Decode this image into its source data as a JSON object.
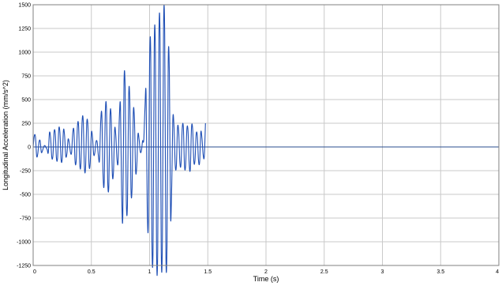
{
  "chart_data": {
    "type": "line",
    "title": "",
    "xlabel": "Time (s)",
    "ylabel": "Longitudinal Acceleration (mm/s^2)",
    "xlim": [
      0,
      4
    ],
    "ylim": [
      -1250,
      1500
    ],
    "x_ticks": [
      0,
      0.5,
      1,
      1.5,
      2,
      2.5,
      3,
      3.5,
      4
    ],
    "x_tick_labels": [
      "0",
      "0.5",
      "1",
      "1.5",
      "2",
      "2.5",
      "3",
      "3.5",
      "4"
    ],
    "y_ticks": [
      -1250,
      -1000,
      -750,
      -500,
      -250,
      0,
      250,
      500,
      750,
      1000,
      1250,
      1500
    ],
    "y_tick_labels": [
      "-1250",
      "-1000",
      "-750",
      "-500",
      "-250",
      "0",
      "250",
      "500",
      "750",
      "1000",
      "1250",
      "1500"
    ],
    "grid": true,
    "legend": "none",
    "series": [
      {
        "color": "#1f4fb5",
        "sample_interval_s": 0.01,
        "values": [
          0,
          118,
          105,
          -95,
          -70,
          50,
          65,
          -55,
          -40,
          0,
          15,
          -5,
          -25,
          -60,
          150,
          95,
          -110,
          -90,
          160,
          140,
          -120,
          -115,
          190,
          150,
          -135,
          -120,
          175,
          120,
          -95,
          -70,
          80,
          45,
          -55,
          -60,
          145,
          175,
          -150,
          -145,
          210,
          230,
          -175,
          -185,
          260,
          280,
          -210,
          -220,
          245,
          230,
          -190,
          -170,
          150,
          100,
          -80,
          -60,
          55,
          50,
          -90,
          -140,
          260,
          340,
          -280,
          -380,
          370,
          400,
          -350,
          -410,
          320,
          320,
          -280,
          -260,
          185,
          120,
          -130,
          -155,
          300,
          430,
          -475,
          -740,
          655,
          630,
          -560,
          -600,
          520,
          500,
          -440,
          -420,
          360,
          290,
          -250,
          -200,
          130,
          80,
          -50,
          -40,
          65,
          70,
          400,
          560,
          -640,
          -780,
          880,
          980,
          -980,
          -1050,
          1050,
          1000,
          -1100,
          -1075,
          1125,
          1150,
          -1080,
          -1000,
          1250,
          1175,
          -1110,
          -1000,
          900,
          770,
          -720,
          -420,
          300,
          210,
          -190,
          -200,
          200,
          160,
          -160,
          -180,
          190,
          210,
          -200,
          -190,
          180,
          175,
          -175,
          -230,
          200,
          190,
          -150,
          -140,
          130,
          120,
          -140,
          -160,
          155,
          90,
          -80,
          -100,
          250
        ]
      }
    ]
  }
}
